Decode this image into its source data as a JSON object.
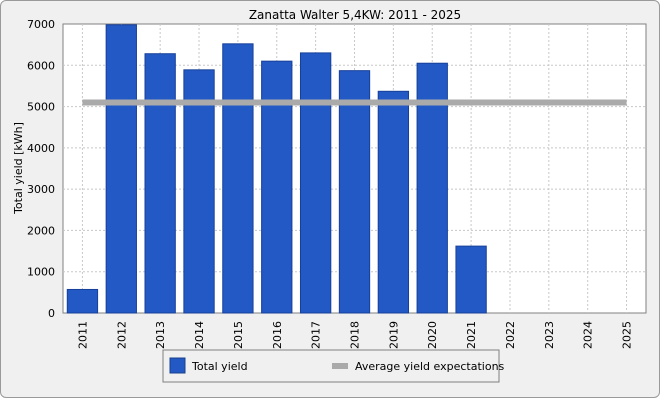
{
  "chart_data": {
    "type": "bar",
    "title": "Zanatta Walter 5,4KW: 2011 - 2025",
    "ylabel": "Total yield [kWh]",
    "xlabel": "",
    "ylim": [
      0,
      7000
    ],
    "yticks": [
      0,
      1000,
      2000,
      3000,
      4000,
      5000,
      6000,
      7000
    ],
    "grid": true,
    "legend_position": "bottom-center",
    "categories": [
      "2011",
      "2012",
      "2013",
      "2014",
      "2015",
      "2016",
      "2017",
      "2018",
      "2019",
      "2020",
      "2021",
      "2022",
      "2023",
      "2024",
      "2025"
    ],
    "series": [
      {
        "name": "Total yield",
        "kind": "bar",
        "color": "#2359c4",
        "values": [
          570,
          6980,
          6280,
          5890,
          6520,
          6100,
          6300,
          5870,
          5370,
          6050,
          1620,
          null,
          null,
          null,
          null
        ]
      },
      {
        "name": "Average yield expectations",
        "kind": "line",
        "color": "#aaaaaa",
        "values": [
          5100,
          5100,
          5100,
          5100,
          5100,
          5100,
          5100,
          5100,
          5100,
          5100,
          5100,
          5100,
          5100,
          5100,
          5100
        ]
      }
    ]
  }
}
